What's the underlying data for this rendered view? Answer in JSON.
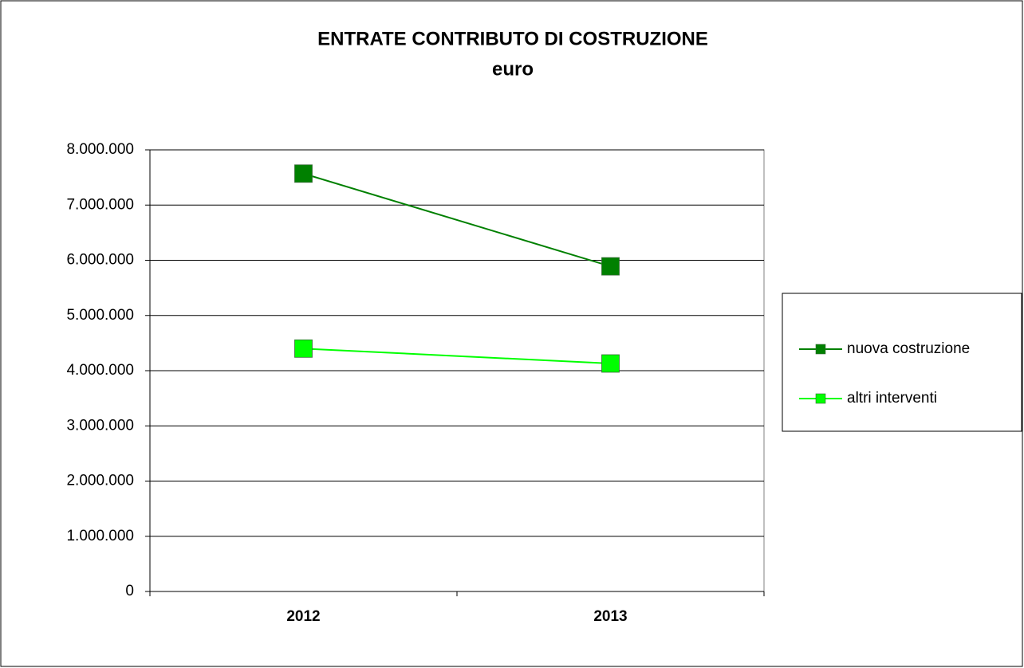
{
  "chart_data": {
    "type": "line",
    "title": "ENTRATE CONTRIBUTO DI COSTRUZIONE",
    "subtitle": "euro",
    "categories": [
      "2012",
      "2013"
    ],
    "series": [
      {
        "name": "nuova costruzione",
        "color": "#008000",
        "values": [
          7570000,
          5890000
        ]
      },
      {
        "name": "altri interventi",
        "color": "#00ff00",
        "values": [
          4400000,
          4130000
        ]
      }
    ],
    "ylim": [
      0,
      8000000
    ],
    "yticks": [
      0,
      {
        "value": 1000000,
        "label": "1.000.000"
      },
      {
        "value": 2000000,
        "label": "2.000.000"
      },
      {
        "value": 3000000,
        "label": "3.000.000"
      },
      {
        "value": 4000000,
        "label": "4.000.000"
      },
      {
        "value": 5000000,
        "label": "5.000.000"
      },
      {
        "value": 6000000,
        "label": "6.000.000"
      },
      {
        "value": 7000000,
        "label": "7.000.000"
      },
      {
        "value": 8000000,
        "label": "8.000.000"
      }
    ],
    "grid": true,
    "legend": "right"
  }
}
